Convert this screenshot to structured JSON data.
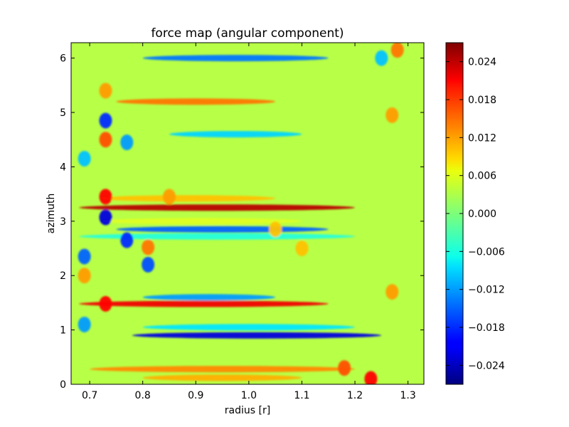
{
  "chart_data": {
    "type": "heatmap",
    "title": "force map (angular component)",
    "xlabel": "radius [r]",
    "ylabel": "azimuth",
    "xlim": [
      0.665,
      1.33
    ],
    "ylim": [
      0,
      6.283
    ],
    "x_ticks": [
      {
        "value": 0.7,
        "label": "0.7"
      },
      {
        "value": 0.8,
        "label": "0.8"
      },
      {
        "value": 0.9,
        "label": "0.9"
      },
      {
        "value": 1.0,
        "label": "1.0"
      },
      {
        "value": 1.1,
        "label": "1.1"
      },
      {
        "value": 1.2,
        "label": "1.2"
      },
      {
        "value": 1.3,
        "label": "1.3"
      }
    ],
    "y_ticks": [
      {
        "value": 0,
        "label": "0"
      },
      {
        "value": 1,
        "label": "1"
      },
      {
        "value": 2,
        "label": "2"
      },
      {
        "value": 3,
        "label": "3"
      },
      {
        "value": 4,
        "label": "4"
      },
      {
        "value": 5,
        "label": "5"
      },
      {
        "value": 6,
        "label": "6"
      }
    ],
    "colorbar": {
      "colormap": "jet",
      "range": [
        -0.027,
        0.027
      ],
      "ticks": [
        {
          "value": 0.024,
          "label": "0.024"
        },
        {
          "value": 0.018,
          "label": "0.018"
        },
        {
          "value": 0.012,
          "label": "0.012"
        },
        {
          "value": 0.006,
          "label": "0.006"
        },
        {
          "value": 0.0,
          "label": "0.000"
        },
        {
          "value": -0.006,
          "label": "−0.006"
        },
        {
          "value": -0.012,
          "label": "−0.012"
        },
        {
          "value": -0.018,
          "label": "−0.018"
        },
        {
          "value": -0.024,
          "label": "−0.024"
        }
      ]
    },
    "background_value": 0.003,
    "bands": [
      {
        "azimuth": 3.25,
        "r_min": 0.68,
        "r_max": 1.2,
        "value": 0.024
      },
      {
        "azimuth": 1.48,
        "r_min": 0.68,
        "r_max": 1.15,
        "value": 0.021
      },
      {
        "azimuth": 5.2,
        "r_min": 0.75,
        "r_max": 1.05,
        "value": 0.014
      },
      {
        "azimuth": 0.28,
        "r_min": 0.7,
        "r_max": 1.2,
        "value": 0.013
      },
      {
        "azimuth": 0.12,
        "r_min": 0.8,
        "r_max": 1.1,
        "value": 0.011
      },
      {
        "azimuth": 3.42,
        "r_min": 0.72,
        "r_max": 1.05,
        "value": 0.01
      },
      {
        "azimuth": 0.9,
        "r_min": 0.78,
        "r_max": 1.25,
        "value": -0.022
      },
      {
        "azimuth": 2.85,
        "r_min": 0.75,
        "r_max": 1.15,
        "value": -0.015
      },
      {
        "azimuth": 6.0,
        "r_min": 0.8,
        "r_max": 1.15,
        "value": -0.014
      },
      {
        "azimuth": 1.6,
        "r_min": 0.8,
        "r_max": 1.05,
        "value": -0.012
      },
      {
        "azimuth": 4.6,
        "r_min": 0.85,
        "r_max": 1.1,
        "value": -0.009
      },
      {
        "azimuth": 1.05,
        "r_min": 0.8,
        "r_max": 1.2,
        "value": -0.008
      },
      {
        "azimuth": 2.72,
        "r_min": 0.68,
        "r_max": 1.2,
        "value": -0.005
      },
      {
        "azimuth": 3.0,
        "r_min": 0.72,
        "r_max": 1.1,
        "value": 0.005
      }
    ],
    "blobs": [
      {
        "radius": 0.73,
        "azimuth": 3.07,
        "value": -0.022
      },
      {
        "radius": 0.73,
        "azimuth": 4.85,
        "value": -0.018
      },
      {
        "radius": 0.77,
        "azimuth": 2.65,
        "value": -0.018
      },
      {
        "radius": 0.69,
        "azimuth": 2.35,
        "value": -0.015
      },
      {
        "radius": 0.81,
        "azimuth": 2.2,
        "value": -0.016
      },
      {
        "radius": 0.69,
        "azimuth": 1.1,
        "value": -0.012
      },
      {
        "radius": 0.69,
        "azimuth": 4.15,
        "value": -0.01
      },
      {
        "radius": 0.77,
        "azimuth": 4.45,
        "value": -0.012
      },
      {
        "radius": 0.73,
        "azimuth": 3.45,
        "value": 0.02
      },
      {
        "radius": 0.73,
        "azimuth": 4.5,
        "value": 0.016
      },
      {
        "radius": 0.73,
        "azimuth": 5.4,
        "value": 0.012
      },
      {
        "radius": 0.73,
        "azimuth": 1.48,
        "value": 0.02
      },
      {
        "radius": 0.81,
        "azimuth": 2.52,
        "value": 0.014
      },
      {
        "radius": 0.69,
        "azimuth": 2.0,
        "value": 0.012
      },
      {
        "radius": 1.23,
        "azimuth": 0.1,
        "value": 0.02
      },
      {
        "radius": 1.18,
        "azimuth": 0.3,
        "value": 0.016
      },
      {
        "radius": 1.28,
        "azimuth": 6.15,
        "value": 0.014
      },
      {
        "radius": 1.27,
        "azimuth": 4.95,
        "value": 0.012
      },
      {
        "radius": 1.27,
        "azimuth": 1.7,
        "value": 0.012
      },
      {
        "radius": 1.1,
        "azimuth": 2.5,
        "value": 0.01
      },
      {
        "radius": 1.25,
        "azimuth": 6.0,
        "value": -0.01
      },
      {
        "radius": 0.85,
        "azimuth": 3.45,
        "value": 0.012
      },
      {
        "radius": 1.05,
        "azimuth": 2.85,
        "value": 0.01
      }
    ]
  }
}
